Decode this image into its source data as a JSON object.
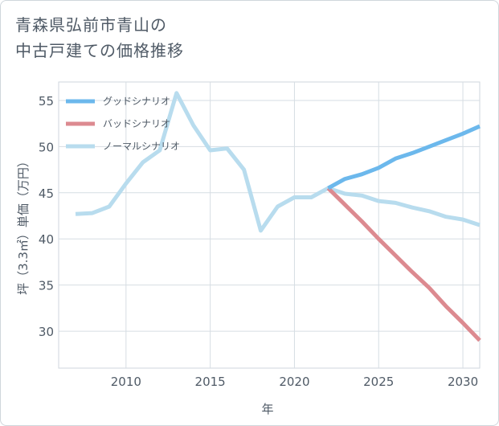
{
  "title_line1": "青森県弘前市青山の",
  "title_line2": "中古戸建ての価格推移",
  "chart_data": {
    "type": "line",
    "xlabel": "年",
    "ylabel": "坪（3.3㎡）単価（万円）",
    "xlim": [
      2006,
      2031
    ],
    "ylim": [
      26,
      57
    ],
    "xticks": [
      2010,
      2015,
      2020,
      2025,
      2030
    ],
    "yticks": [
      30,
      35,
      40,
      45,
      50,
      55
    ],
    "grid": true,
    "legend_position": "top-left",
    "series": [
      {
        "name": "グッドシナリオ",
        "color": "#6cb8ec",
        "x": [
          2022,
          2023,
          2024,
          2025,
          2026,
          2027,
          2028,
          2029,
          2030,
          2031
        ],
        "y": [
          45.5,
          46.5,
          47.0,
          47.7,
          48.7,
          49.3,
          50.0,
          50.7,
          51.4,
          52.2
        ]
      },
      {
        "name": "バッドシナリオ",
        "color": "#dc8a90",
        "x": [
          2022,
          2023,
          2024,
          2025,
          2026,
          2027,
          2028,
          2029,
          2030,
          2031
        ],
        "y": [
          45.5,
          43.7,
          41.9,
          40.0,
          38.2,
          36.4,
          34.7,
          32.7,
          30.9,
          29.0
        ]
      },
      {
        "name": "ノーマルシナリオ",
        "color": "#b8dcee",
        "x": [
          2007,
          2008,
          2009,
          2010,
          2011,
          2012,
          2013,
          2014,
          2015,
          2016,
          2017,
          2018,
          2019,
          2020,
          2021,
          2022,
          2023,
          2024,
          2025,
          2026,
          2027,
          2028,
          2029,
          2030,
          2031
        ],
        "y": [
          42.7,
          42.8,
          43.5,
          46.0,
          48.3,
          49.6,
          55.8,
          52.3,
          49.6,
          49.8,
          47.5,
          40.9,
          43.5,
          44.5,
          44.5,
          45.5,
          44.9,
          44.7,
          44.1,
          43.9,
          43.4,
          43.0,
          42.4,
          42.1,
          41.5
        ]
      }
    ]
  }
}
